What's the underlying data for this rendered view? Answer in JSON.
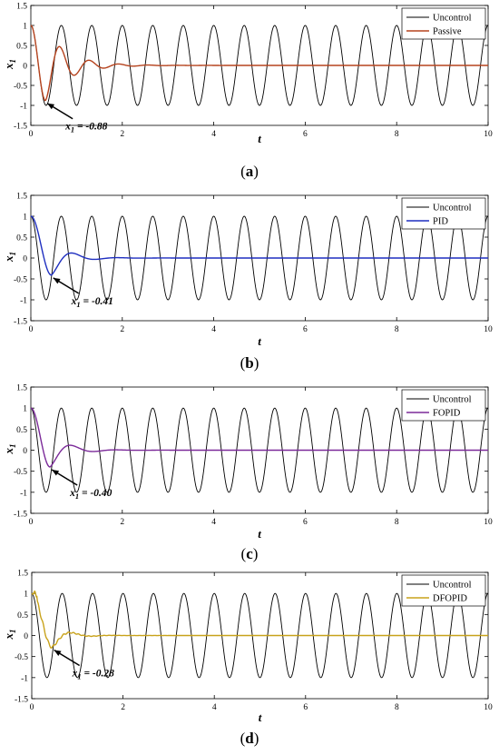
{
  "chart_data": [
    {
      "type": "line",
      "panel_label": "a",
      "xlabel": "t",
      "ylabel": "x",
      "ylabel_subscript": "1",
      "xlim": [
        0,
        10
      ],
      "ylim": [
        -1.5,
        1.5
      ],
      "xticks": [
        "0",
        "2",
        "4",
        "6",
        "8",
        "10"
      ],
      "yticks": [
        "1.5",
        "1",
        "0.5",
        "0",
        "-0.5",
        "-1",
        "-1.5"
      ],
      "legend_position": "top-right",
      "series": [
        {
          "name": "Uncontrol",
          "color": "#000000",
          "kind": "sinusoid",
          "amplitude": 1.0,
          "frequency_hz": 1.5,
          "phase_shape": "cosine"
        },
        {
          "name": "Passive",
          "color": "#b5431e",
          "kind": "damped",
          "peak_min": -0.88,
          "peak_time": 0.32,
          "decay_time": 0.5,
          "frequency_hz": 1.55
        }
      ],
      "annotation": {
        "prefix": "x",
        "subscript": "1",
        "value_text": " = -0.88",
        "x": 0.32,
        "y": -0.88
      }
    },
    {
      "type": "line",
      "panel_label": "b",
      "xlabel": "t",
      "ylabel": "x",
      "ylabel_subscript": "1",
      "xlim": [
        0,
        10
      ],
      "ylim": [
        -1.5,
        1.5
      ],
      "xticks": [
        "0",
        "2",
        "4",
        "6",
        "8",
        "10"
      ],
      "yticks": [
        "1.5",
        "1",
        "0.5",
        "0",
        "-0.5",
        "-1",
        "-1.5"
      ],
      "legend_position": "top-right",
      "series": [
        {
          "name": "Uncontrol",
          "color": "#000000",
          "kind": "sinusoid",
          "amplitude": 1.0,
          "frequency_hz": 1.5,
          "phase_shape": "cosine"
        },
        {
          "name": "PID",
          "color": "#1f2fc0",
          "kind": "damped",
          "peak_min": -0.41,
          "peak_time": 0.45,
          "decay_time": 0.38,
          "frequency_hz": 1.0
        }
      ],
      "annotation": {
        "prefix": "x",
        "subscript": "1",
        "value_text": " = -0.41",
        "x": 0.45,
        "y": -0.41
      }
    },
    {
      "type": "line",
      "panel_label": "c",
      "xlabel": "t",
      "ylabel": "x",
      "ylabel_subscript": "1",
      "xlim": [
        0,
        10
      ],
      "ylim": [
        -1.5,
        1.5
      ],
      "xticks": [
        "0",
        "2",
        "4",
        "6",
        "8",
        "10"
      ],
      "yticks": [
        "1.5",
        "1",
        "0.5",
        "0",
        "-0.5",
        "-1",
        "-1.5"
      ],
      "legend_position": "top-right",
      "series": [
        {
          "name": "Uncontrol",
          "color": "#000000",
          "kind": "sinusoid",
          "amplitude": 1.0,
          "frequency_hz": 1.5,
          "phase_shape": "cosine"
        },
        {
          "name": "FOPID",
          "color": "#7b2a99",
          "kind": "damped",
          "peak_min": -0.4,
          "peak_time": 0.42,
          "decay_time": 0.38,
          "frequency_hz": 1.0
        }
      ],
      "annotation": {
        "prefix": "x",
        "subscript": "1",
        "value_text": " = -0.40",
        "x": 0.42,
        "y": -0.4
      }
    },
    {
      "type": "line",
      "panel_label": "d",
      "xlabel": "t",
      "ylabel": "x",
      "ylabel_subscript": "1",
      "xlim": [
        0,
        10
      ],
      "ylim": [
        -1.5,
        1.5
      ],
      "xticks": [
        "0",
        "2",
        "4",
        "6",
        "8",
        "10"
      ],
      "yticks": [
        "1.5",
        "1",
        "0.5",
        "0",
        "-0.5",
        "-1",
        "-1.5"
      ],
      "legend_position": "top-right",
      "series": [
        {
          "name": "Uncontrol",
          "color": "#000000",
          "kind": "sinusoid",
          "amplitude": 1.0,
          "frequency_hz": 1.5,
          "phase_shape": "cosine"
        },
        {
          "name": "DFOPID",
          "color": "#c8a21a",
          "kind": "wiggly",
          "peak_min": -0.28,
          "peak_time": 0.45,
          "decay_time": 0.3,
          "frequency_hz": 1.1
        }
      ],
      "annotation": {
        "prefix": "x",
        "subscript": "1",
        "value_text": " = -0.28",
        "x": 0.45,
        "y": -0.28
      }
    }
  ],
  "captions": [
    {
      "open": "(",
      "label": "a",
      "close": ")"
    },
    {
      "open": "(",
      "label": "b",
      "close": ")"
    },
    {
      "open": "(",
      "label": "c",
      "close": ")"
    },
    {
      "open": "(",
      "label": "d",
      "close": ")"
    }
  ]
}
